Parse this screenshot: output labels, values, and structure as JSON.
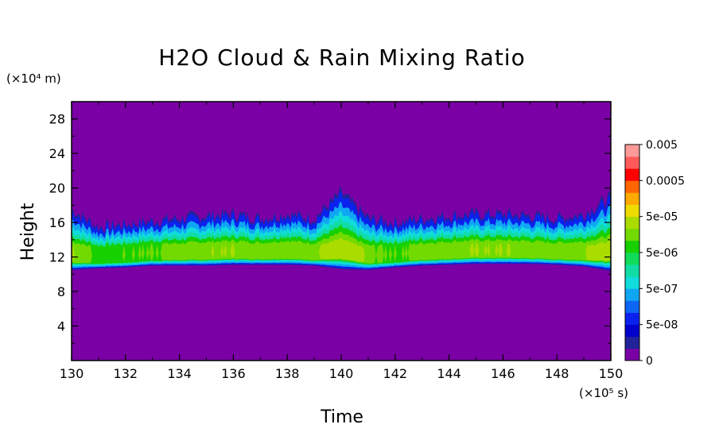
{
  "chart_data": {
    "type": "heatmap",
    "title": "H2O Cloud & Rain Mixing Ratio",
    "xlabel": "Time",
    "ylabel": "Height",
    "x_unit": "(×10⁵ s)",
    "y_unit": "(×10⁴ m)",
    "xlim": [
      130,
      150
    ],
    "ylim": [
      0,
      30
    ],
    "x_ticks": [
      130,
      132,
      134,
      136,
      138,
      140,
      142,
      144,
      146,
      148,
      150
    ],
    "y_ticks": [
      4,
      8,
      12,
      16,
      20,
      24,
      28
    ],
    "background_color": "#7a00a6",
    "colorbar": {
      "colors": [
        "#7a00a6",
        "#22229a",
        "#0000cc",
        "#0b22ee",
        "#0e66f4",
        "#10a6f4",
        "#10dcdc",
        "#10dca4",
        "#10dc5a",
        "#16d000",
        "#72da00",
        "#aadc00",
        "#eedc00",
        "#ffaa00",
        "#ff6600",
        "#ff0000",
        "#ff5a5a",
        "#ff9a9a"
      ],
      "labels": [
        "0",
        "5e-08",
        "5e-07",
        "5e-06",
        "5e-05",
        "0.0005",
        "0.005"
      ]
    },
    "cloud_band": {
      "description_free": true,
      "base_height": [
        10.5,
        10.7,
        10.8,
        11.0,
        11.0,
        11.0,
        11.1,
        11.1,
        11.1,
        11.0,
        10.6,
        10.5,
        10.8,
        11.0,
        11.1,
        11.2,
        11.2,
        11.2,
        11.1,
        10.9,
        10.4
      ],
      "top_height": [
        17.5,
        15.5,
        15.8,
        16.2,
        16.5,
        16.8,
        17.0,
        16.5,
        17.0,
        16.5,
        19.5,
        16.5,
        16.0,
        16.5,
        16.8,
        17.0,
        17.0,
        16.8,
        16.5,
        17.0,
        19.0
      ],
      "x": [
        130,
        131,
        132,
        133,
        134,
        135,
        136,
        137,
        138,
        139,
        140,
        141,
        142,
        143,
        144,
        145,
        146,
        147,
        148,
        149,
        150
      ]
    }
  }
}
